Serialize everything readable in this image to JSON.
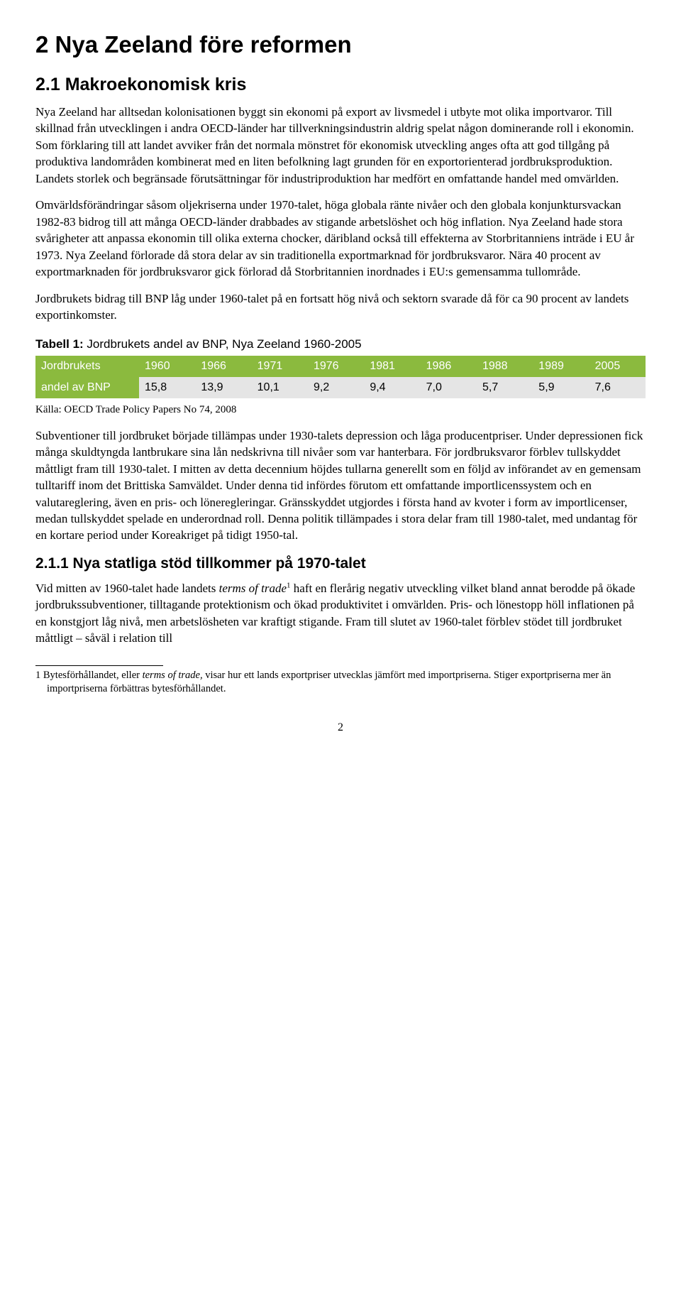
{
  "h1": "2   Nya Zeeland före reformen",
  "h2": "2.1   Makroekonomisk kris",
  "p1": "Nya Zeeland har alltsedan kolonisationen byggt sin ekonomi på export av livsmedel i utbyte mot olika importvaror. Till skillnad från utvecklingen i andra OECD-länder har tillverkningsindustrin aldrig spelat någon dominerande roll i ekonomin. Som förklaring till att landet avviker från det normala mönstret för ekonomisk utveckling anges ofta att god tillgång på produktiva landområden kombinerat med en liten befolkning lagt grunden för en exportorienterad jordbruksproduktion. Landets storlek och begränsade förutsättningar för industriproduktion har medfört en omfattande handel med omvärlden.",
  "p2": "Omvärldsförändringar såsom oljekriserna under 1970-talet, höga globala ränte nivåer och den globala konjunktursvackan 1982-83 bidrog till att många OECD-länder drabbades av stigande arbetslöshet och hög inflation. Nya Zeeland hade stora svårigheter att anpassa ekonomin till olika externa chocker, däribland också till effekterna av Storbritanniens inträde i EU år 1973. Nya Zeeland förlorade då stora delar av sin traditionella exportmarknad för jordbruksvaror. Nära 40 procent av exportmarknaden för jordbruksvaror gick förlorad då Storbritannien inordnades i EU:s gemensamma tullområde.",
  "p3": "Jordbrukets bidrag till BNP låg under 1960-talet på en fortsatt hög nivå och sektorn svarade då för ca 90 procent av landets exportinkomster.",
  "table_caption_bold": "Tabell 1:",
  "table_caption_rest": " Jordbrukets andel av BNP, Nya Zeeland 1960-2005",
  "table": {
    "row_label_1": "Jordbrukets",
    "row_label_2": "andel av BNP",
    "years": [
      "1960",
      "1966",
      "1971",
      "1976",
      "1981",
      "1986",
      "1988",
      "1989",
      "2005"
    ],
    "values": [
      "15,8",
      "13,9",
      "10,1",
      "9,2",
      "9,4",
      "7,0",
      "5,7",
      "5,9",
      "7,6"
    ],
    "header_bg": "#8bba3e",
    "data_bg": "#e5e5e5"
  },
  "source": "Källa: OECD Trade Policy Papers No 74, 2008",
  "p4": "Subventioner till jordbruket började tillämpas under 1930-talets depression och låga producentpriser. Under depressionen fick många skuldtyngda lantbrukare sina lån nedskrivna till nivåer som var hanterbara. För jordbruksvaror förblev tullskyddet måttligt fram till 1930-talet. I mitten av detta decennium höjdes tullarna generellt som en följd av införandet av en gemensam tulltariff inom det Brittiska Samväldet. Under denna tid infördes förutom ett omfattande importlicenssystem och en valutareglering, även en pris- och löneregleringar. Gränsskyddet utgjordes i första hand av kvoter i form av importlicenser, medan tullskyddet spelade en underordnad roll. Denna politik tillämpades i stora delar fram till 1980-talet, med undantag för en kortare period under Koreakriget på tidigt 1950-tal.",
  "h3": "2.1.1   Nya statliga stöd tillkommer på 1970-talet",
  "p5a": "Vid mitten av 1960-talet hade landets ",
  "p5_it1": "terms of trade",
  "p5b": " haft en flerårig negativ utveckling vilket bland annat berodde på ökade jordbrukssubventioner, tilltagande protektionism och ökad produktivitet i omvärlden. Pris- och lönestopp höll inflationen på en konstgjort låg nivå, men arbetslösheten var kraftigt stigande. Fram till slutet av 1960-talet förblev stödet till jordbruket måttligt – såväl i relation till",
  "fn_a": "1   Bytesförhållandet, eller ",
  "fn_it": "terms of trade,",
  "fn_b": " visar hur ett lands exportpriser utvecklas jämfört med importpriserna. Stiger exportpriserna mer än importpriserna förbättras bytesförhållandet.",
  "page_num": "2"
}
